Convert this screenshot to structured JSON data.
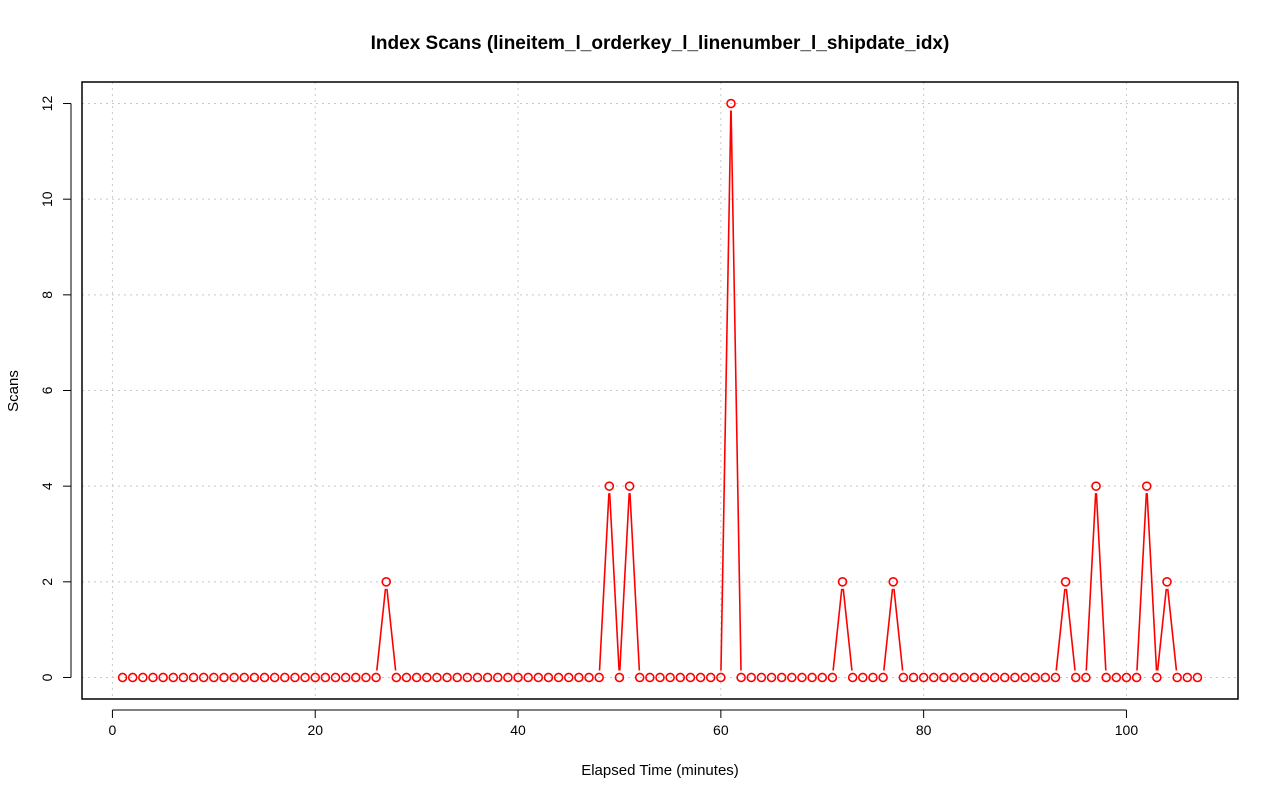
{
  "chart_data": {
    "type": "line",
    "title": "Index Scans (lineitem_l_orderkey_l_linenumber_l_shipdate_idx)",
    "xlabel": "Elapsed Time (minutes)",
    "ylabel": "Scans",
    "xlim": [
      -3,
      111
    ],
    "ylim": [
      -0.45,
      12.45
    ],
    "xticks": [
      0,
      20,
      40,
      60,
      80,
      100
    ],
    "yticks": [
      0,
      2,
      4,
      6,
      8,
      10,
      12
    ],
    "grid": true,
    "series_color": "#ff0000",
    "series": [
      {
        "x": [
          1,
          2,
          3,
          4,
          5,
          6,
          7,
          8,
          9,
          10,
          11,
          12,
          13,
          14,
          15,
          16,
          17,
          18,
          19,
          20,
          21,
          22,
          23,
          24,
          25,
          26,
          27,
          28,
          29,
          30,
          31,
          32,
          33,
          34,
          35,
          36,
          37,
          38,
          39,
          40,
          41,
          42,
          43,
          44,
          45,
          46,
          47,
          48,
          49,
          50,
          51,
          52,
          53,
          54,
          55,
          56,
          57,
          58,
          59,
          60,
          61,
          62,
          63,
          64,
          65,
          66,
          67,
          68,
          69,
          70,
          71,
          72,
          73,
          74,
          75,
          76,
          77,
          78,
          79,
          80,
          81,
          82,
          83,
          84,
          85,
          86,
          87,
          88,
          89,
          90,
          91,
          92,
          93,
          94,
          95,
          96,
          97,
          98,
          99,
          100,
          101,
          102,
          103,
          104,
          105,
          106,
          107
        ],
        "values": [
          0,
          0,
          0,
          0,
          0,
          0,
          0,
          0,
          0,
          0,
          0,
          0,
          0,
          0,
          0,
          0,
          0,
          0,
          0,
          0,
          0,
          0,
          0,
          0,
          0,
          0,
          2,
          0,
          0,
          0,
          0,
          0,
          0,
          0,
          0,
          0,
          0,
          0,
          0,
          0,
          0,
          0,
          0,
          0,
          0,
          0,
          0,
          0,
          4,
          0,
          4,
          0,
          0,
          0,
          0,
          0,
          0,
          0,
          0,
          0,
          12,
          0,
          0,
          0,
          0,
          0,
          0,
          0,
          0,
          0,
          0,
          2,
          0,
          0,
          0,
          0,
          2,
          0,
          0,
          0,
          0,
          0,
          0,
          0,
          0,
          0,
          0,
          0,
          0,
          0,
          0,
          0,
          0,
          2,
          0,
          0,
          4,
          0,
          0,
          0,
          0,
          4,
          0,
          2,
          0,
          0,
          0
        ]
      }
    ]
  }
}
